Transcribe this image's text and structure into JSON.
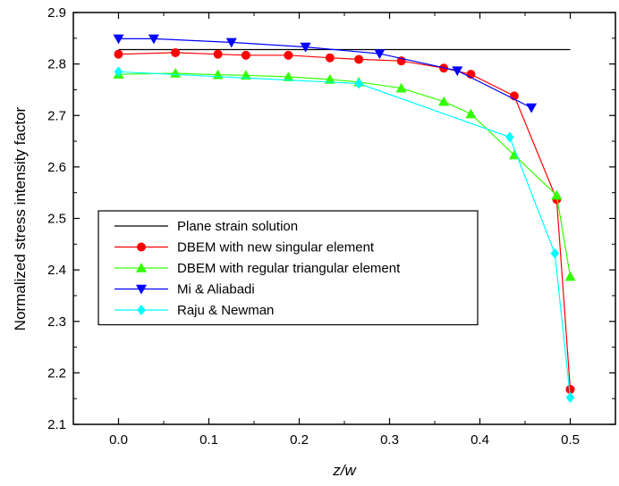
{
  "chart_data": {
    "type": "line",
    "xlabel": "z/w",
    "ylabel": "Normalized stress intensity factor",
    "xlim": [
      -0.05,
      0.55
    ],
    "ylim": [
      2.1,
      2.9
    ],
    "x_ticks": [
      0.0,
      0.1,
      0.2,
      0.3,
      0.4,
      0.5
    ],
    "x_tick_labels": [
      "0.0",
      "0.1",
      "0.2",
      "0.3",
      "0.4",
      "0.5"
    ],
    "y_ticks": [
      2.1,
      2.2,
      2.3,
      2.4,
      2.5,
      2.6,
      2.7,
      2.8,
      2.9
    ],
    "y_tick_labels": [
      "2.1",
      "2.2",
      "2.3",
      "2.4",
      "2.5",
      "2.6",
      "2.7",
      "2.8",
      "2.9"
    ],
    "grid": false,
    "legend_position": "lower-left",
    "series": [
      {
        "name": "Plane strain solution",
        "color": "#000000",
        "marker": "none",
        "x": [
          0.0,
          0.5
        ],
        "y": [
          2.828,
          2.828
        ]
      },
      {
        "name": "DBEM with new singular element",
        "color": "#ff0000",
        "marker": "circle",
        "x": [
          0.0,
          0.063,
          0.11,
          0.141,
          0.188,
          0.234,
          0.266,
          0.313,
          0.36,
          0.39,
          0.438,
          0.485,
          0.5
        ],
        "y": [
          2.819,
          2.822,
          2.819,
          2.817,
          2.817,
          2.812,
          2.809,
          2.806,
          2.792,
          2.78,
          2.738,
          2.537,
          2.168
        ]
      },
      {
        "name": "DBEM with regular triangular element",
        "color": "#33ff00",
        "marker": "triangle-up",
        "x": [
          0.0,
          0.063,
          0.11,
          0.141,
          0.188,
          0.234,
          0.266,
          0.313,
          0.36,
          0.39,
          0.438,
          0.485,
          0.5
        ],
        "y": [
          2.78,
          2.782,
          2.779,
          2.778,
          2.775,
          2.77,
          2.765,
          2.753,
          2.727,
          2.703,
          2.623,
          2.545,
          2.387
        ]
      },
      {
        "name": "Mi & Aliabadi",
        "color": "#0000ff",
        "marker": "triangle-down",
        "x": [
          0.0,
          0.039,
          0.125,
          0.207,
          0.289,
          0.375,
          0.457
        ],
        "y": [
          2.849,
          2.849,
          2.842,
          2.833,
          2.82,
          2.787,
          2.715
        ]
      },
      {
        "name": "Raju & Newman",
        "color": "#00ffff",
        "marker": "diamond",
        "x": [
          0.0,
          0.266,
          0.433,
          0.483,
          0.5
        ],
        "y": [
          2.785,
          2.762,
          2.658,
          2.432,
          2.152
        ]
      }
    ]
  }
}
